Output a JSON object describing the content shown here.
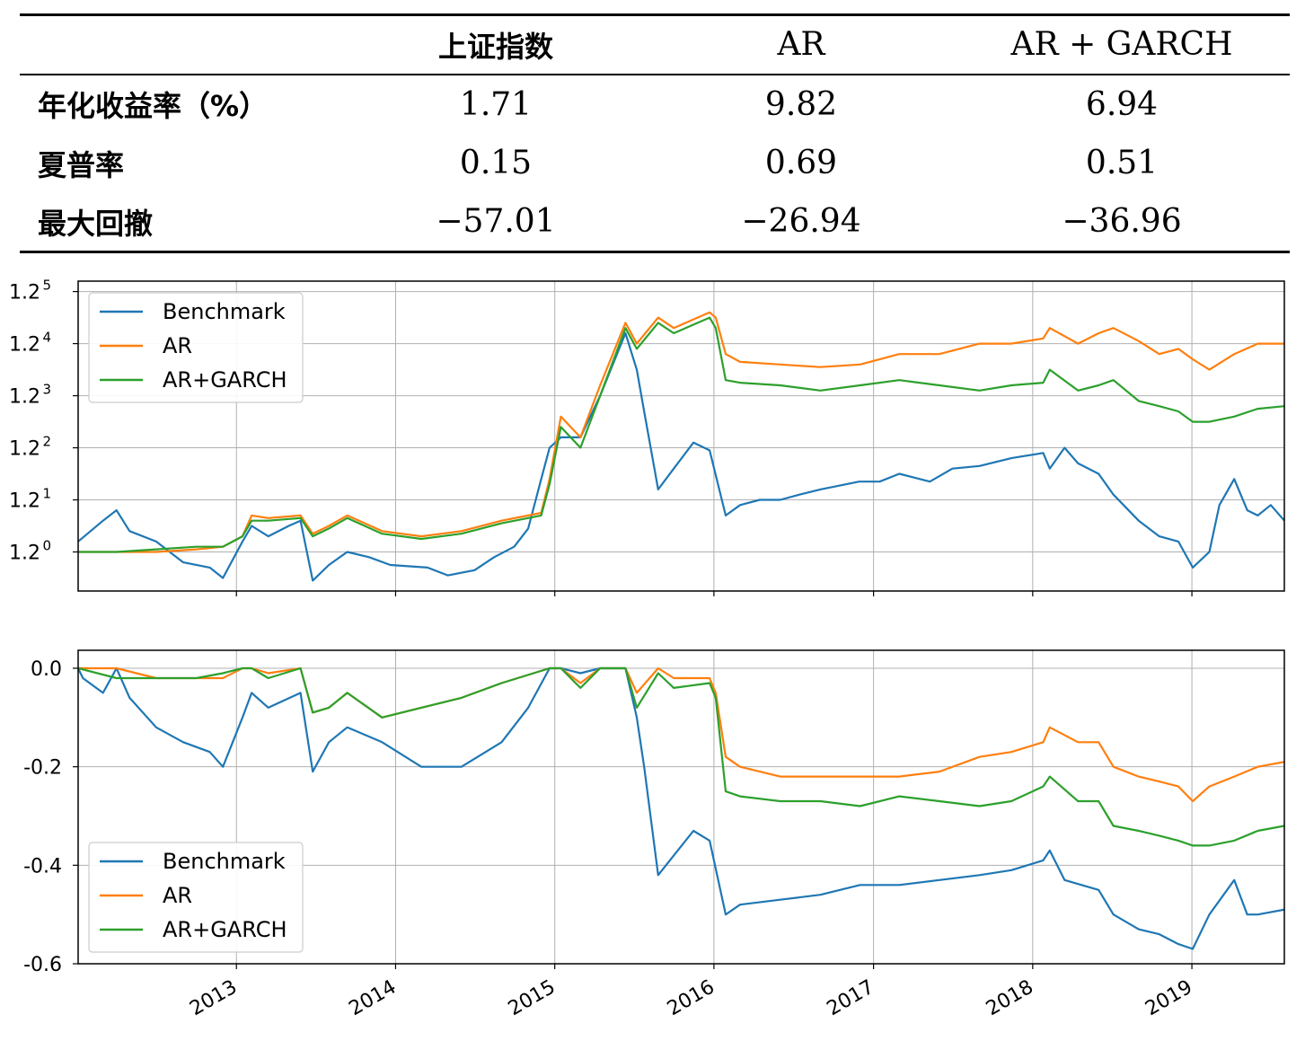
{
  "table": {
    "headers": [
      "",
      "上证指数",
      "AR",
      "AR + GARCH"
    ],
    "rows": [
      {
        "label": "年化收益率（%）",
        "values": [
          "1.71",
          "9.82",
          "6.94"
        ]
      },
      {
        "label": "夏普率",
        "values": [
          "0.15",
          "0.69",
          "0.51"
        ]
      },
      {
        "label": "最大回撤",
        "values": [
          "−57.01",
          "−26.94",
          "−36.96"
        ]
      }
    ]
  },
  "chart_data": [
    {
      "type": "line",
      "title": "",
      "xlabel": "",
      "ylabel": "",
      "yscale": "log base 1.2",
      "ylim_exponent": [
        -0.75,
        5.2
      ],
      "xlim": [
        "2012-01-04",
        "2019-08-01"
      ],
      "x_ticks": [
        "2013",
        "2014",
        "2015",
        "2016",
        "2017",
        "2018",
        "2019"
      ],
      "y_ticks": [
        {
          "base": "1.2",
          "exp": "0"
        },
        {
          "base": "1.2",
          "exp": "1"
        },
        {
          "base": "1.2",
          "exp": "2"
        },
        {
          "base": "1.2",
          "exp": "3"
        },
        {
          "base": "1.2",
          "exp": "4"
        },
        {
          "base": "1.2",
          "exp": "5"
        }
      ],
      "grid": true,
      "legend_position": "upper-left",
      "series": [
        {
          "name": "Benchmark",
          "color": "#1f77b4",
          "x": [
            "2012-01-04",
            "2012-03-01",
            "2012-04-01",
            "2012-05-01",
            "2012-07-01",
            "2012-09-01",
            "2012-11-01",
            "2012-12-01",
            "2013-01-15",
            "2013-02-05",
            "2013-03-15",
            "2013-05-01",
            "2013-05-28",
            "2013-06-25",
            "2013-08-01",
            "2013-09-12",
            "2013-11-01",
            "2013-12-20",
            "2014-03-15",
            "2014-05-01",
            "2014-07-01",
            "2014-08-15",
            "2014-09-30",
            "2014-11-01",
            "2014-12-01",
            "2014-12-20",
            "2015-01-15",
            "2015-03-01",
            "2015-04-15",
            "2015-06-12",
            "2015-07-08",
            "2015-07-25",
            "2015-08-26",
            "2015-10-01",
            "2015-11-15",
            "2015-12-22",
            "2016-01-28",
            "2016-03-01",
            "2016-04-15",
            "2016-06-01",
            "2016-07-15",
            "2016-09-01",
            "2016-11-29",
            "2017-01-15",
            "2017-03-01",
            "2017-05-10",
            "2017-07-01",
            "2017-09-01",
            "2017-11-13",
            "2018-01-25",
            "2018-02-09",
            "2018-03-15",
            "2018-04-15",
            "2018-06-01",
            "2018-07-05",
            "2018-09-01",
            "2018-10-18",
            "2018-12-01",
            "2019-01-03",
            "2019-02-10",
            "2019-03-05",
            "2019-04-08",
            "2019-05-08",
            "2019-06-01",
            "2019-07-01",
            "2019-08-01"
          ],
          "y_exponent": [
            0.2,
            0.6,
            0.8,
            0.4,
            0.2,
            -0.2,
            -0.3,
            -0.5,
            0.2,
            0.5,
            0.3,
            0.5,
            0.6,
            -0.55,
            -0.25,
            0.0,
            -0.1,
            -0.25,
            -0.3,
            -0.45,
            -0.35,
            -0.1,
            0.1,
            0.45,
            1.4,
            2.0,
            2.2,
            2.2,
            3.0,
            4.2,
            3.5,
            2.7,
            1.2,
            1.6,
            2.1,
            1.95,
            0.7,
            0.9,
            1.0,
            1.0,
            1.1,
            1.2,
            1.35,
            1.35,
            1.5,
            1.35,
            1.6,
            1.65,
            1.8,
            1.9,
            1.6,
            2.0,
            1.7,
            1.5,
            1.1,
            0.6,
            0.3,
            0.2,
            -0.3,
            0.0,
            0.9,
            1.4,
            0.8,
            0.7,
            0.9,
            0.6
          ]
        },
        {
          "name": "AR",
          "color": "#ff7f0e",
          "x": [
            "2012-01-04",
            "2012-04-01",
            "2012-07-01",
            "2012-10-01",
            "2012-12-01",
            "2013-01-15",
            "2013-02-05",
            "2013-03-15",
            "2013-05-28",
            "2013-06-25",
            "2013-08-01",
            "2013-09-12",
            "2013-12-01",
            "2014-03-01",
            "2014-06-01",
            "2014-09-01",
            "2014-12-01",
            "2014-12-20",
            "2015-01-15",
            "2015-03-01",
            "2015-04-15",
            "2015-06-12",
            "2015-07-08",
            "2015-08-26",
            "2015-10-01",
            "2015-12-22",
            "2016-01-05",
            "2016-01-28",
            "2016-03-01",
            "2016-06-01",
            "2016-09-01",
            "2016-12-01",
            "2017-03-01",
            "2017-06-01",
            "2017-09-01",
            "2017-11-13",
            "2018-01-25",
            "2018-02-09",
            "2018-04-15",
            "2018-06-01",
            "2018-07-05",
            "2018-09-01",
            "2018-10-18",
            "2018-12-01",
            "2019-01-03",
            "2019-02-10",
            "2019-04-08",
            "2019-06-01",
            "2019-08-01"
          ],
          "y_exponent": [
            0.0,
            0.0,
            0.0,
            0.05,
            0.1,
            0.3,
            0.7,
            0.65,
            0.7,
            0.35,
            0.5,
            0.7,
            0.4,
            0.3,
            0.4,
            0.6,
            0.75,
            1.4,
            2.6,
            2.2,
            3.2,
            4.4,
            4.0,
            4.5,
            4.3,
            4.6,
            4.5,
            3.8,
            3.65,
            3.6,
            3.55,
            3.6,
            3.8,
            3.8,
            4.0,
            4.0,
            4.1,
            4.3,
            4.0,
            4.2,
            4.3,
            4.05,
            3.8,
            3.9,
            3.7,
            3.5,
            3.8,
            4.0,
            4.0
          ]
        },
        {
          "name": "AR+GARCH",
          "color": "#2ca02c",
          "x": [
            "2012-01-04",
            "2012-04-01",
            "2012-07-01",
            "2012-10-01",
            "2012-12-01",
            "2013-01-15",
            "2013-02-05",
            "2013-03-15",
            "2013-05-28",
            "2013-06-25",
            "2013-08-01",
            "2013-09-12",
            "2013-12-01",
            "2014-03-01",
            "2014-06-01",
            "2014-09-01",
            "2014-12-01",
            "2014-12-20",
            "2015-01-15",
            "2015-03-01",
            "2015-04-15",
            "2015-06-12",
            "2015-07-08",
            "2015-08-26",
            "2015-10-01",
            "2015-12-22",
            "2016-01-05",
            "2016-01-28",
            "2016-03-01",
            "2016-06-01",
            "2016-09-01",
            "2016-12-01",
            "2017-03-01",
            "2017-06-01",
            "2017-09-01",
            "2017-11-13",
            "2018-01-25",
            "2018-02-09",
            "2018-04-15",
            "2018-06-01",
            "2018-07-05",
            "2018-09-01",
            "2018-10-18",
            "2018-12-01",
            "2019-01-03",
            "2019-02-10",
            "2019-04-08",
            "2019-06-01",
            "2019-08-01"
          ],
          "y_exponent": [
            0.0,
            0.0,
            0.05,
            0.1,
            0.1,
            0.3,
            0.6,
            0.6,
            0.65,
            0.3,
            0.45,
            0.65,
            0.35,
            0.25,
            0.35,
            0.55,
            0.7,
            1.3,
            2.4,
            2.0,
            3.0,
            4.3,
            3.9,
            4.4,
            4.2,
            4.5,
            4.3,
            3.3,
            3.25,
            3.2,
            3.1,
            3.2,
            3.3,
            3.2,
            3.1,
            3.2,
            3.25,
            3.5,
            3.1,
            3.2,
            3.3,
            2.9,
            2.8,
            2.7,
            2.5,
            2.5,
            2.6,
            2.75,
            2.8
          ]
        }
      ]
    },
    {
      "type": "line",
      "title": "",
      "xlabel": "",
      "ylabel": "",
      "ylim": [
        -0.6,
        0.0
      ],
      "xlim": [
        "2012-01-04",
        "2019-08-01"
      ],
      "x_ticks": [
        "2013",
        "2014",
        "2015",
        "2016",
        "2017",
        "2018",
        "2019"
      ],
      "y_ticks": [
        "0.0",
        "-0.2",
        "-0.4",
        "-0.6"
      ],
      "grid": true,
      "legend_position": "lower-left",
      "series": [
        {
          "name": "Benchmark",
          "color": "#1f77b4",
          "x": [
            "2012-01-04",
            "2012-01-15",
            "2012-03-01",
            "2012-04-01",
            "2012-05-01",
            "2012-07-01",
            "2012-09-01",
            "2012-11-01",
            "2012-12-01",
            "2013-01-15",
            "2013-02-05",
            "2013-03-15",
            "2013-05-28",
            "2013-06-25",
            "2013-08-01",
            "2013-09-12",
            "2013-12-01",
            "2014-03-01",
            "2014-06-01",
            "2014-09-01",
            "2014-11-01",
            "2014-12-20",
            "2015-01-15",
            "2015-03-01",
            "2015-04-15",
            "2015-06-12",
            "2015-07-08",
            "2015-07-25",
            "2015-08-26",
            "2015-10-01",
            "2015-11-15",
            "2015-12-22",
            "2016-01-28",
            "2016-03-01",
            "2016-06-01",
            "2016-09-01",
            "2016-12-01",
            "2017-03-01",
            "2017-06-01",
            "2017-09-01",
            "2017-11-13",
            "2018-01-25",
            "2018-02-09",
            "2018-03-15",
            "2018-06-01",
            "2018-07-05",
            "2018-09-01",
            "2018-10-18",
            "2018-12-01",
            "2019-01-03",
            "2019-02-10",
            "2019-04-08",
            "2019-05-08",
            "2019-06-01",
            "2019-08-01"
          ],
          "y": [
            0.0,
            -0.02,
            -0.05,
            0.0,
            -0.06,
            -0.12,
            -0.15,
            -0.17,
            -0.2,
            -0.1,
            -0.05,
            -0.08,
            -0.05,
            -0.21,
            -0.15,
            -0.12,
            -0.15,
            -0.2,
            -0.2,
            -0.15,
            -0.08,
            0.0,
            0.0,
            -0.01,
            0.0,
            0.0,
            -0.1,
            -0.2,
            -0.42,
            -0.38,
            -0.33,
            -0.35,
            -0.5,
            -0.48,
            -0.47,
            -0.46,
            -0.44,
            -0.44,
            -0.43,
            -0.42,
            -0.41,
            -0.39,
            -0.37,
            -0.43,
            -0.45,
            -0.5,
            -0.53,
            -0.54,
            -0.56,
            -0.57,
            -0.5,
            -0.43,
            -0.5,
            -0.5,
            -0.49
          ]
        },
        {
          "name": "AR",
          "color": "#ff7f0e",
          "x": [
            "2012-01-04",
            "2012-04-01",
            "2012-07-01",
            "2012-10-01",
            "2012-12-01",
            "2013-01-15",
            "2013-02-05",
            "2013-03-15",
            "2013-05-28",
            "2013-06-25",
            "2013-08-01",
            "2013-09-12",
            "2013-12-01",
            "2014-03-01",
            "2014-06-01",
            "2014-09-01",
            "2014-12-20",
            "2015-01-15",
            "2015-03-01",
            "2015-04-15",
            "2015-06-12",
            "2015-07-08",
            "2015-08-26",
            "2015-10-01",
            "2015-12-22",
            "2016-01-05",
            "2016-01-28",
            "2016-03-01",
            "2016-06-01",
            "2016-09-01",
            "2016-12-01",
            "2017-03-01",
            "2017-06-01",
            "2017-09-01",
            "2017-11-13",
            "2018-01-25",
            "2018-02-09",
            "2018-04-15",
            "2018-06-01",
            "2018-07-05",
            "2018-09-01",
            "2018-10-18",
            "2018-12-01",
            "2019-01-03",
            "2019-02-10",
            "2019-04-08",
            "2019-06-01",
            "2019-08-01"
          ],
          "y": [
            0.0,
            0.0,
            -0.02,
            -0.02,
            -0.02,
            0.0,
            0.0,
            -0.01,
            0.0,
            -0.09,
            -0.08,
            -0.05,
            -0.1,
            -0.08,
            -0.06,
            -0.03,
            0.0,
            0.0,
            -0.03,
            0.0,
            0.0,
            -0.05,
            0.0,
            -0.02,
            -0.02,
            -0.05,
            -0.18,
            -0.2,
            -0.22,
            -0.22,
            -0.22,
            -0.22,
            -0.21,
            -0.18,
            -0.17,
            -0.15,
            -0.12,
            -0.15,
            -0.15,
            -0.2,
            -0.22,
            -0.23,
            -0.24,
            -0.27,
            -0.24,
            -0.22,
            -0.2,
            -0.19
          ]
        },
        {
          "name": "AR+GARCH",
          "color": "#2ca02c",
          "x": [
            "2012-01-04",
            "2012-04-01",
            "2012-07-01",
            "2012-10-01",
            "2012-12-01",
            "2013-01-15",
            "2013-02-05",
            "2013-03-15",
            "2013-05-28",
            "2013-06-25",
            "2013-08-01",
            "2013-09-12",
            "2013-12-01",
            "2014-03-01",
            "2014-06-01",
            "2014-09-01",
            "2014-12-20",
            "2015-01-15",
            "2015-03-01",
            "2015-04-15",
            "2015-06-12",
            "2015-07-08",
            "2015-08-26",
            "2015-10-01",
            "2015-12-22",
            "2016-01-05",
            "2016-01-28",
            "2016-03-01",
            "2016-06-01",
            "2016-09-01",
            "2016-12-01",
            "2017-03-01",
            "2017-06-01",
            "2017-09-01",
            "2017-11-13",
            "2018-01-25",
            "2018-02-09",
            "2018-04-15",
            "2018-06-01",
            "2018-07-05",
            "2018-09-01",
            "2018-10-18",
            "2018-12-01",
            "2019-01-03",
            "2019-02-10",
            "2019-04-08",
            "2019-06-01",
            "2019-08-01"
          ],
          "y": [
            0.0,
            -0.02,
            -0.02,
            -0.02,
            -0.01,
            0.0,
            0.0,
            -0.02,
            0.0,
            -0.09,
            -0.08,
            -0.05,
            -0.1,
            -0.08,
            -0.06,
            -0.03,
            0.0,
            0.0,
            -0.04,
            0.0,
            0.0,
            -0.08,
            -0.01,
            -0.04,
            -0.03,
            -0.06,
            -0.25,
            -0.26,
            -0.27,
            -0.27,
            -0.28,
            -0.26,
            -0.27,
            -0.28,
            -0.27,
            -0.24,
            -0.22,
            -0.27,
            -0.27,
            -0.32,
            -0.33,
            -0.34,
            -0.35,
            -0.36,
            -0.36,
            -0.35,
            -0.33,
            -0.32
          ]
        }
      ]
    }
  ]
}
